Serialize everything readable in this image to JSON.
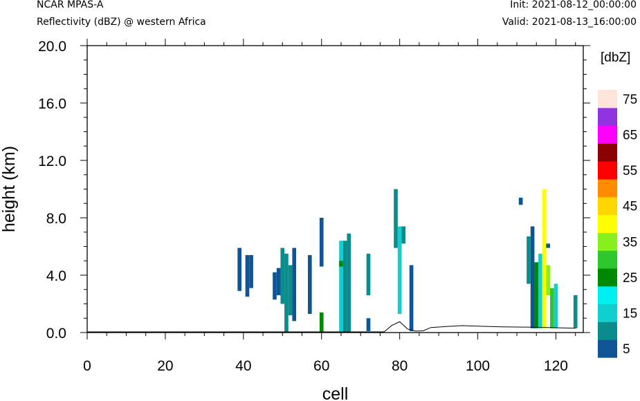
{
  "header": {
    "model": "NCAR MPAS-A",
    "variable": "Reflectivity (dBZ) @ western Africa",
    "init": "Init: 2021-08-12_00:00:00",
    "valid": "Valid: 2021-08-13_16:00:00"
  },
  "chart_data": {
    "type": "heatmap",
    "title": "Reflectivity (dBZ) @ western Africa",
    "xlabel": "cell",
    "ylabel": "height (km)",
    "xlim": [
      0,
      127
    ],
    "ylim": [
      0,
      20
    ],
    "xticks": [
      "0",
      "20",
      "40",
      "60",
      "80",
      "100",
      "120"
    ],
    "yticks": [
      "0.0",
      "4.0",
      "8.0",
      "12.0",
      "16.0",
      "20.0"
    ],
    "colorbar": {
      "unit": "[dbZ]",
      "levels": [
        5,
        10,
        15,
        20,
        25,
        30,
        35,
        40,
        45,
        50,
        55,
        60,
        65,
        70,
        75
      ],
      "labels": [
        "5",
        "15",
        "25",
        "35",
        "45",
        "55",
        "65",
        "75"
      ],
      "colors": [
        "#0f5595",
        "#0a8c8c",
        "#0fcfcf",
        "#00f0f0",
        "#008800",
        "#2ec82e",
        "#88f01c",
        "#ffff00",
        "#ffd700",
        "#ff8c00",
        "#ff0000",
        "#8b0000",
        "#ff00ff",
        "#9033e0",
        "#ffe4dc"
      ]
    },
    "terrain": [
      [
        0,
        0.05
      ],
      [
        76,
        0.05
      ],
      [
        78,
        0.5
      ],
      [
        80,
        0.75
      ],
      [
        82,
        0.25
      ],
      [
        84,
        0.1
      ],
      [
        86,
        0.12
      ],
      [
        88,
        0.35
      ],
      [
        92,
        0.42
      ],
      [
        96,
        0.48
      ],
      [
        100,
        0.45
      ],
      [
        106,
        0.4
      ],
      [
        112,
        0.38
      ],
      [
        118,
        0.35
      ],
      [
        125,
        0.3
      ]
    ],
    "cells": [
      {
        "x": 39,
        "y0": 2.9,
        "y1": 5.9,
        "dbz": 5
      },
      {
        "x": 41,
        "y0": 2.5,
        "y1": 5.4,
        "dbz": 5
      },
      {
        "x": 42,
        "y0": 3.1,
        "y1": 5.4,
        "dbz": 5
      },
      {
        "x": 48,
        "y0": 2.3,
        "y1": 4.2,
        "dbz": 5
      },
      {
        "x": 49,
        "y0": 2.6,
        "y1": 4.5,
        "dbz": 5
      },
      {
        "x": 50,
        "y0": 2.0,
        "y1": 5.9,
        "dbz": 10
      },
      {
        "x": 51,
        "y0": 0.0,
        "y1": 5.5,
        "dbz": 10
      },
      {
        "x": 52,
        "y0": 1.2,
        "y1": 4.7,
        "dbz": 10
      },
      {
        "x": 53,
        "y0": 0.8,
        "y1": 5.9,
        "dbz": 5
      },
      {
        "x": 57,
        "y0": 1.3,
        "y1": 5.4,
        "dbz": 5
      },
      {
        "x": 60,
        "y0": 0.0,
        "y1": 1.4,
        "dbz": 25
      },
      {
        "x": 60,
        "y0": 4.6,
        "y1": 8.0,
        "dbz": 5
      },
      {
        "x": 65,
        "y0": 0.0,
        "y1": 6.4,
        "dbz": 15
      },
      {
        "x": 65,
        "y0": 4.6,
        "y1": 5.0,
        "dbz": 25
      },
      {
        "x": 66,
        "y0": 0.0,
        "y1": 6.4,
        "dbz": 10
      },
      {
        "x": 67,
        "y0": 0.0,
        "y1": 6.9,
        "dbz": 10
      },
      {
        "x": 72,
        "y0": 2.6,
        "y1": 5.5,
        "dbz": 10
      },
      {
        "x": 72,
        "y0": 0.1,
        "y1": 1.0,
        "dbz": 5
      },
      {
        "x": 79,
        "y0": 5.9,
        "y1": 10.0,
        "dbz": 10
      },
      {
        "x": 80,
        "y0": 1.3,
        "y1": 7.4,
        "dbz": 15
      },
      {
        "x": 81,
        "y0": 6.2,
        "y1": 7.4,
        "dbz": 10
      },
      {
        "x": 83,
        "y0": 0.1,
        "y1": 4.7,
        "dbz": 5
      },
      {
        "x": 111,
        "y0": 8.9,
        "y1": 9.4,
        "dbz": 5
      },
      {
        "x": 113,
        "y0": 3.4,
        "y1": 6.7,
        "dbz": 10
      },
      {
        "x": 114,
        "y0": 0.3,
        "y1": 7.4,
        "dbz": 5
      },
      {
        "x": 115,
        "y0": 0.3,
        "y1": 4.9,
        "dbz": 25
      },
      {
        "x": 116,
        "y0": 0.3,
        "y1": 5.5,
        "dbz": 15
      },
      {
        "x": 117,
        "y0": 0.3,
        "y1": 10.0,
        "dbz": 40
      },
      {
        "x": 118,
        "y0": 2.6,
        "y1": 4.7,
        "dbz": 35
      },
      {
        "x": 118,
        "y0": 5.9,
        "y1": 6.2,
        "dbz": 5
      },
      {
        "x": 119,
        "y0": 0.3,
        "y1": 3.1,
        "dbz": 30
      },
      {
        "x": 120,
        "y0": 0.3,
        "y1": 3.4,
        "dbz": 15
      },
      {
        "x": 125,
        "y0": 0.3,
        "y1": 2.6,
        "dbz": 10
      }
    ]
  }
}
